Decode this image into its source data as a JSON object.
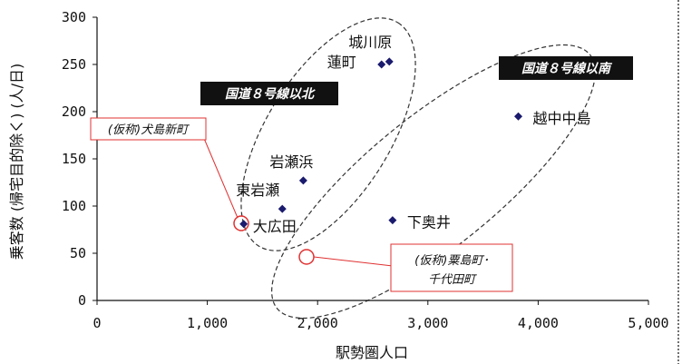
{
  "chart_data": {
    "type": "scatter",
    "title": "",
    "xlabel": "駅勢圏人口",
    "ylabel": "乗客数 (帰宅目的除く) (人/日)",
    "xlim": [
      0,
      5000
    ],
    "ylim": [
      0,
      300
    ],
    "x_ticks": [
      "0",
      "1,000",
      "2,000",
      "3,000",
      "4,000",
      "5,000"
    ],
    "y_ticks": [
      "0",
      "50",
      "100",
      "150",
      "200",
      "250",
      "300"
    ],
    "x_tick_values": [
      0,
      1000,
      2000,
      3000,
      4000,
      5000
    ],
    "y_tick_values": [
      0,
      50,
      100,
      150,
      200,
      250,
      300
    ],
    "grid": false,
    "marker_color": "#1a1a6e",
    "points": [
      {
        "label": "城川原",
        "x": 2650,
        "y": 253
      },
      {
        "label": "蓮町",
        "x": 2580,
        "y": 250
      },
      {
        "label": "越中中島",
        "x": 3820,
        "y": 195
      },
      {
        "label": "岩瀬浜",
        "x": 1870,
        "y": 127
      },
      {
        "label": "東岩瀬",
        "x": 1680,
        "y": 97
      },
      {
        "label": "大広田",
        "x": 1330,
        "y": 81
      },
      {
        "label": "下奥井",
        "x": 2680,
        "y": 85
      }
    ],
    "annotations": {
      "group_north": "国道８号線以北",
      "group_south": "国道８号線以南",
      "planned_1": "(仮称)犬島新町",
      "planned_2_line1": "(仮称)粟島町･",
      "planned_2_line2": "千代田町"
    },
    "colors": {
      "axis": "#111111",
      "callout": "#e03030",
      "banner_bg": "#111111"
    }
  }
}
